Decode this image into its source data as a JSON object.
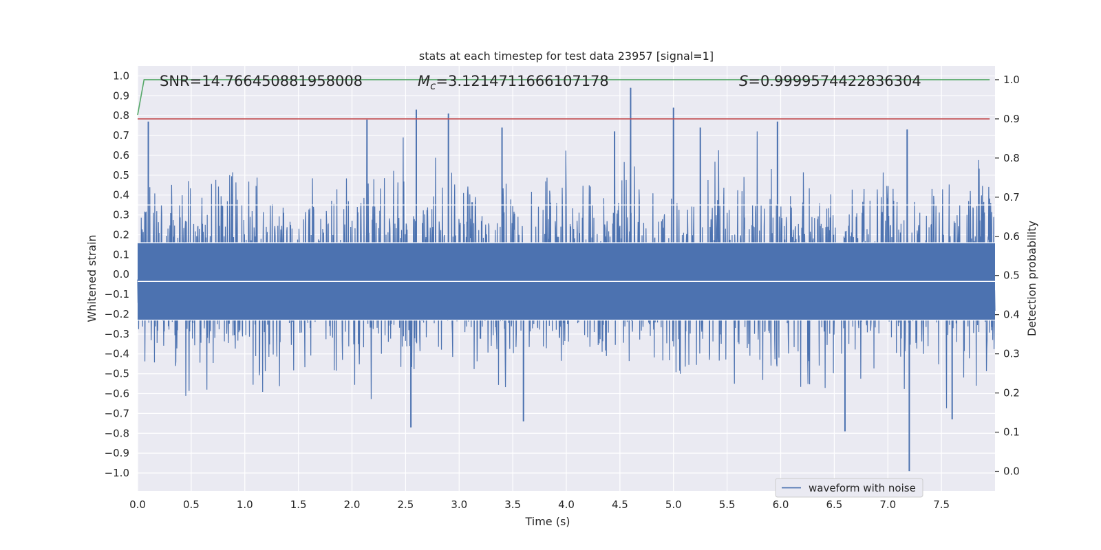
{
  "chart_data": {
    "type": "line",
    "title": "stats at each timestep for test data 23957 [signal=1]",
    "xlabel": "Time (s)",
    "ylabel": "Whitened strain",
    "y2label": "Detection probability",
    "xlim": [
      0.0,
      8.0
    ],
    "ylim": [
      -1.09,
      1.05
    ],
    "y2lim": [
      -0.05,
      1.035
    ],
    "x_ticks": [
      0.0,
      0.5,
      1.0,
      1.5,
      2.0,
      2.5,
      3.0,
      3.5,
      4.0,
      4.5,
      5.0,
      5.5,
      6.0,
      6.5,
      7.0,
      7.5
    ],
    "x_tick_labels": [
      "0.0",
      "0.5",
      "1.0",
      "1.5",
      "2.0",
      "2.5",
      "3.0",
      "3.5",
      "4.0",
      "4.5",
      "5.0",
      "5.5",
      "6.0",
      "6.5",
      "7.0",
      "7.5"
    ],
    "y_ticks": [
      1.0,
      0.9,
      0.8,
      0.7,
      0.6,
      0.5,
      0.4,
      0.3,
      0.2,
      0.1,
      0.0,
      -0.1,
      -0.2,
      -0.3,
      -0.4,
      -0.5,
      -0.6,
      -0.7,
      -0.8,
      -0.9,
      -1.0
    ],
    "y_tick_labels": [
      "1.0",
      "0.9",
      "0.8",
      "0.7",
      "0.6",
      "0.5",
      "0.4",
      "0.3",
      "0.2",
      "0.1",
      "0.0",
      "−0.1",
      "−0.2",
      "−0.3",
      "−0.4",
      "−0.5",
      "−0.6",
      "−0.7",
      "−0.8",
      "−0.9",
      "−1.0"
    ],
    "y2_ticks": [
      1.0,
      0.9,
      0.8,
      0.7,
      0.6,
      0.5,
      0.4,
      0.3,
      0.2,
      0.1,
      0.0
    ],
    "y2_tick_labels": [
      "1.0",
      "0.9",
      "0.8",
      "0.7",
      "0.6",
      "0.5",
      "0.4",
      "0.3",
      "0.2",
      "0.1",
      "0.0"
    ],
    "annotations": {
      "snr": "SNR=14.766450881958008",
      "mc_symbol": "M",
      "mc_sub": "c",
      "mc_value": "=3.1214711666107178",
      "s_symbol": "S",
      "s_value": "=0.9999574422836304"
    },
    "series": [
      {
        "name": "waveform with noise",
        "axis": "left",
        "color": "#4c72b0",
        "kind": "noisy-waveform",
        "x_range": [
          0.0,
          8.0
        ],
        "typical_envelope": [
          -0.45,
          0.45
        ],
        "peaks": [
          {
            "x": 0.1,
            "y": 0.77
          },
          {
            "x": 2.14,
            "y": 0.78
          },
          {
            "x": 2.6,
            "y": 0.83
          },
          {
            "x": 2.9,
            "y": 0.81
          },
          {
            "x": 3.4,
            "y": 0.74
          },
          {
            "x": 4.45,
            "y": 0.72
          },
          {
            "x": 4.6,
            "y": 0.94
          },
          {
            "x": 5.0,
            "y": 0.84
          },
          {
            "x": 5.25,
            "y": 0.74
          },
          {
            "x": 5.97,
            "y": 0.77
          },
          {
            "x": 7.18,
            "y": 0.73
          }
        ],
        "troughs": [
          {
            "x": 2.55,
            "y": -0.77
          },
          {
            "x": 3.6,
            "y": -0.74
          },
          {
            "x": 6.6,
            "y": -0.79
          },
          {
            "x": 7.2,
            "y": -0.99
          },
          {
            "x": 7.6,
            "y": -0.73
          }
        ]
      },
      {
        "name": "detection probability",
        "axis": "right",
        "color": "#55a868",
        "x": [
          0.0,
          0.06,
          7.95
        ],
        "y": [
          0.91,
          1.0,
          1.0
        ]
      },
      {
        "name": "threshold",
        "axis": "right",
        "color": "#c44e52",
        "x": [
          0.0,
          7.95
        ],
        "y": [
          0.9,
          0.9
        ]
      }
    ],
    "legend": {
      "position": "lower-right",
      "entries": [
        "waveform with noise"
      ]
    },
    "grid": true,
    "colors": {
      "background": "#eaeaf2",
      "grid": "#ffffff",
      "waveform": "#4c72b0",
      "probability": "#55a868",
      "threshold": "#c44e52"
    }
  }
}
